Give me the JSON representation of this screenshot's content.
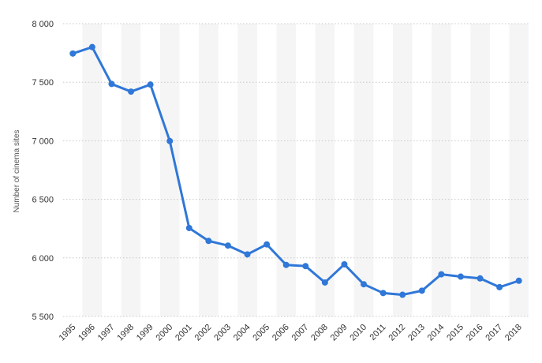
{
  "chart_data": {
    "type": "line",
    "ylabel": "Number of cinema sites",
    "xlabel": "",
    "ylim": [
      5500,
      8000
    ],
    "yticks": [
      5500,
      6000,
      6500,
      7000,
      7500,
      8000
    ],
    "ytick_labels": [
      "5 500",
      "6 000",
      "6 500",
      "7 000",
      "7 500",
      "8 000"
    ],
    "grid": true,
    "x": [
      "1995",
      "1996",
      "1997",
      "1998",
      "1999",
      "2000",
      "2001",
      "2002",
      "2003",
      "2004",
      "2005",
      "2006",
      "2007",
      "2008",
      "2009",
      "2010",
      "2011",
      "2012",
      "2013",
      "2014",
      "2015",
      "2016",
      "2017",
      "2018"
    ],
    "series": [
      {
        "color": "#2f77d8",
        "values": [
          7745,
          7800,
          7485,
          7420,
          7480,
          6998,
          6255,
          6145,
          6105,
          6030,
          6115,
          5940,
          5930,
          5790,
          5945,
          5775,
          5700,
          5685,
          5720,
          5860,
          5840,
          5825,
          5750,
          5805
        ]
      }
    ]
  }
}
